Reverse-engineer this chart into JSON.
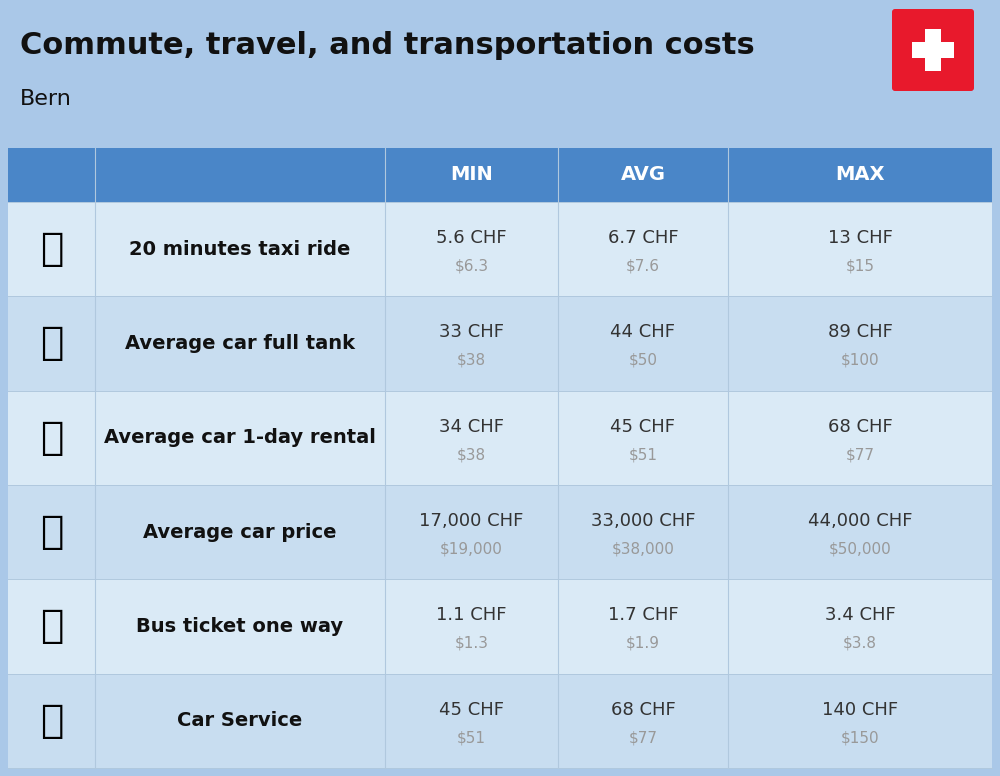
{
  "title": "Commute, travel, and transportation costs",
  "subtitle": "Bern",
  "background_color": "#aac8e8",
  "header_bg_color": "#4a86c8",
  "header_text_color": "#ffffff",
  "col_header": [
    "MIN",
    "AVG",
    "MAX"
  ],
  "rows": [
    {
      "label": "20 minutes taxi ride",
      "emoji": "🚕",
      "min_chf": "5.6 CHF",
      "min_usd": "$6.3",
      "avg_chf": "6.7 CHF",
      "avg_usd": "$7.6",
      "max_chf": "13 CHF",
      "max_usd": "$15"
    },
    {
      "label": "Average car full tank",
      "emoji": "⛽",
      "min_chf": "33 CHF",
      "min_usd": "$38",
      "avg_chf": "44 CHF",
      "avg_usd": "$50",
      "max_chf": "89 CHF",
      "max_usd": "$100"
    },
    {
      "label": "Average car 1-day rental",
      "emoji": "🚙",
      "min_chf": "34 CHF",
      "min_usd": "$38",
      "avg_chf": "45 CHF",
      "avg_usd": "$51",
      "max_chf": "68 CHF",
      "max_usd": "$77"
    },
    {
      "label": "Average car price",
      "emoji": "🚗",
      "min_chf": "17,000 CHF",
      "min_usd": "$19,000",
      "avg_chf": "33,000 CHF",
      "avg_usd": "$38,000",
      "max_chf": "44,000 CHF",
      "max_usd": "$50,000"
    },
    {
      "label": "Bus ticket one way",
      "emoji": "🚌",
      "min_chf": "1.1 CHF",
      "min_usd": "$1.3",
      "avg_chf": "1.7 CHF",
      "avg_usd": "$1.9",
      "max_chf": "3.4 CHF",
      "max_usd": "$3.8"
    },
    {
      "label": "Car Service",
      "emoji": "🚗",
      "min_chf": "45 CHF",
      "min_usd": "$51",
      "avg_chf": "68 CHF",
      "avg_usd": "$77",
      "max_chf": "140 CHF",
      "max_usd": "$150"
    }
  ],
  "flag_red": "#e8192c",
  "chf_color": "#333333",
  "usd_color": "#999999",
  "label_color": "#111111",
  "title_fontsize": 22,
  "subtitle_fontsize": 16,
  "header_font_size": 14,
  "label_font_size": 14,
  "value_font_size": 13,
  "usd_font_size": 11
}
